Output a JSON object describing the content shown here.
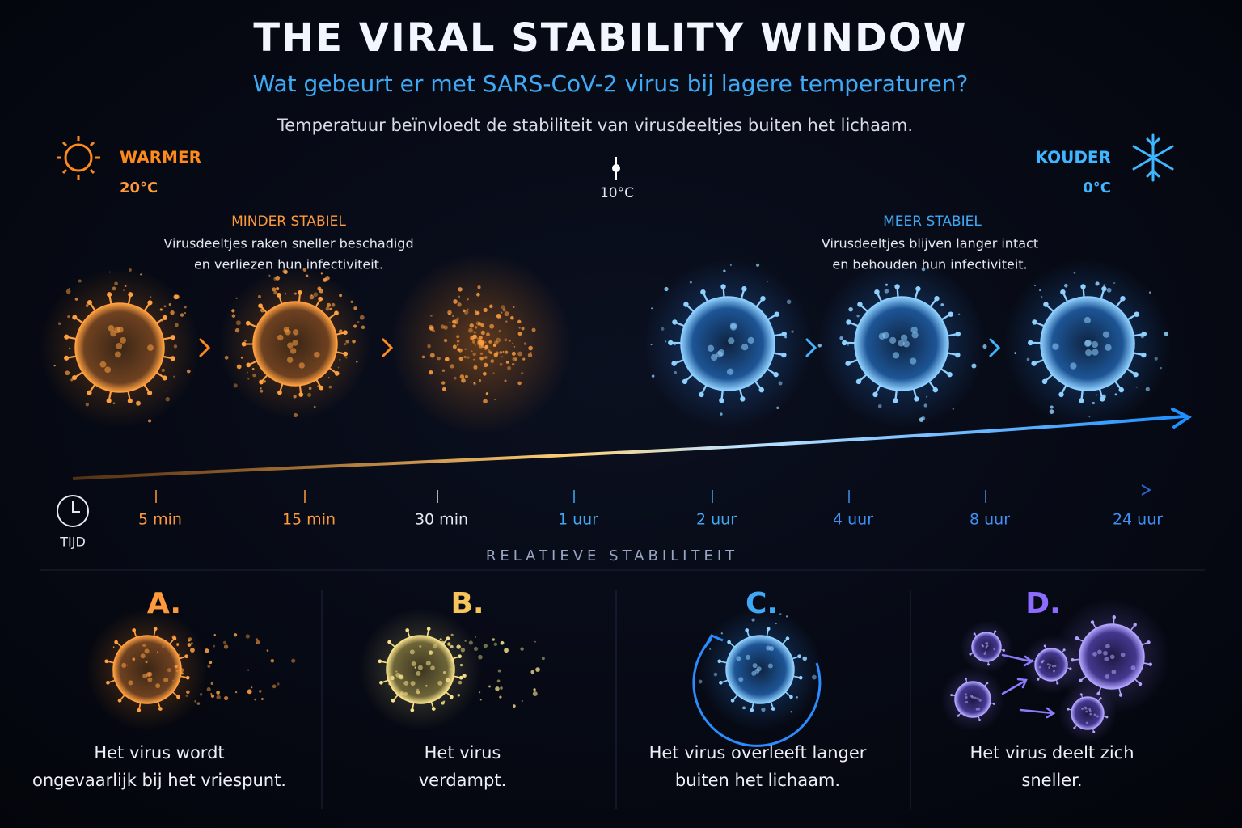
{
  "header": {
    "title": "THE VIRAL STABILITY WINDOW",
    "subtitle": "Wat gebeurt er met SARS-CoV-2 virus bij lagere temperaturen?",
    "description": "Temperatuur beïnvloedt de stabiliteit van virusdeeltjes buiten het lichaam."
  },
  "temperature_scale": {
    "warm_label": "WARMER",
    "warm_value": "20°C",
    "mid_value": "10°C",
    "cold_label": "KOUDER",
    "cold_value": "0°C"
  },
  "panels": {
    "warm": {
      "heading": "MINDER STABIEL",
      "lines": [
        "Virusdeeltjes raken sneller beschadigd",
        "en verliezen hun infectiviteit."
      ]
    },
    "cold": {
      "heading": "MEER STABIEL",
      "lines": [
        "Virusdeeltjes blijven langer intact",
        "en behouden hun infectiviteit."
      ]
    }
  },
  "time_axis": {
    "label": "TIJD",
    "ticks": [
      "5 min",
      "15 min",
      "30 min",
      "1 uur",
      "2 uur",
      "4 uur",
      "8 uur",
      "24 uur"
    ]
  },
  "section_label": "RELATIEVE STABILITEIT",
  "options": [
    {
      "letter": "A.",
      "lines": [
        "Het virus wordt",
        "ongevaarlijk bij het vriespunt."
      ]
    },
    {
      "letter": "B.",
      "lines": [
        "Het virus",
        "verdampt."
      ]
    },
    {
      "letter": "C.",
      "lines": [
        "Het virus overleeft langer",
        "buiten het lichaam."
      ]
    },
    {
      "letter": "D.",
      "lines": [
        "Het virus deelt zich",
        "sneller."
      ]
    }
  ]
}
